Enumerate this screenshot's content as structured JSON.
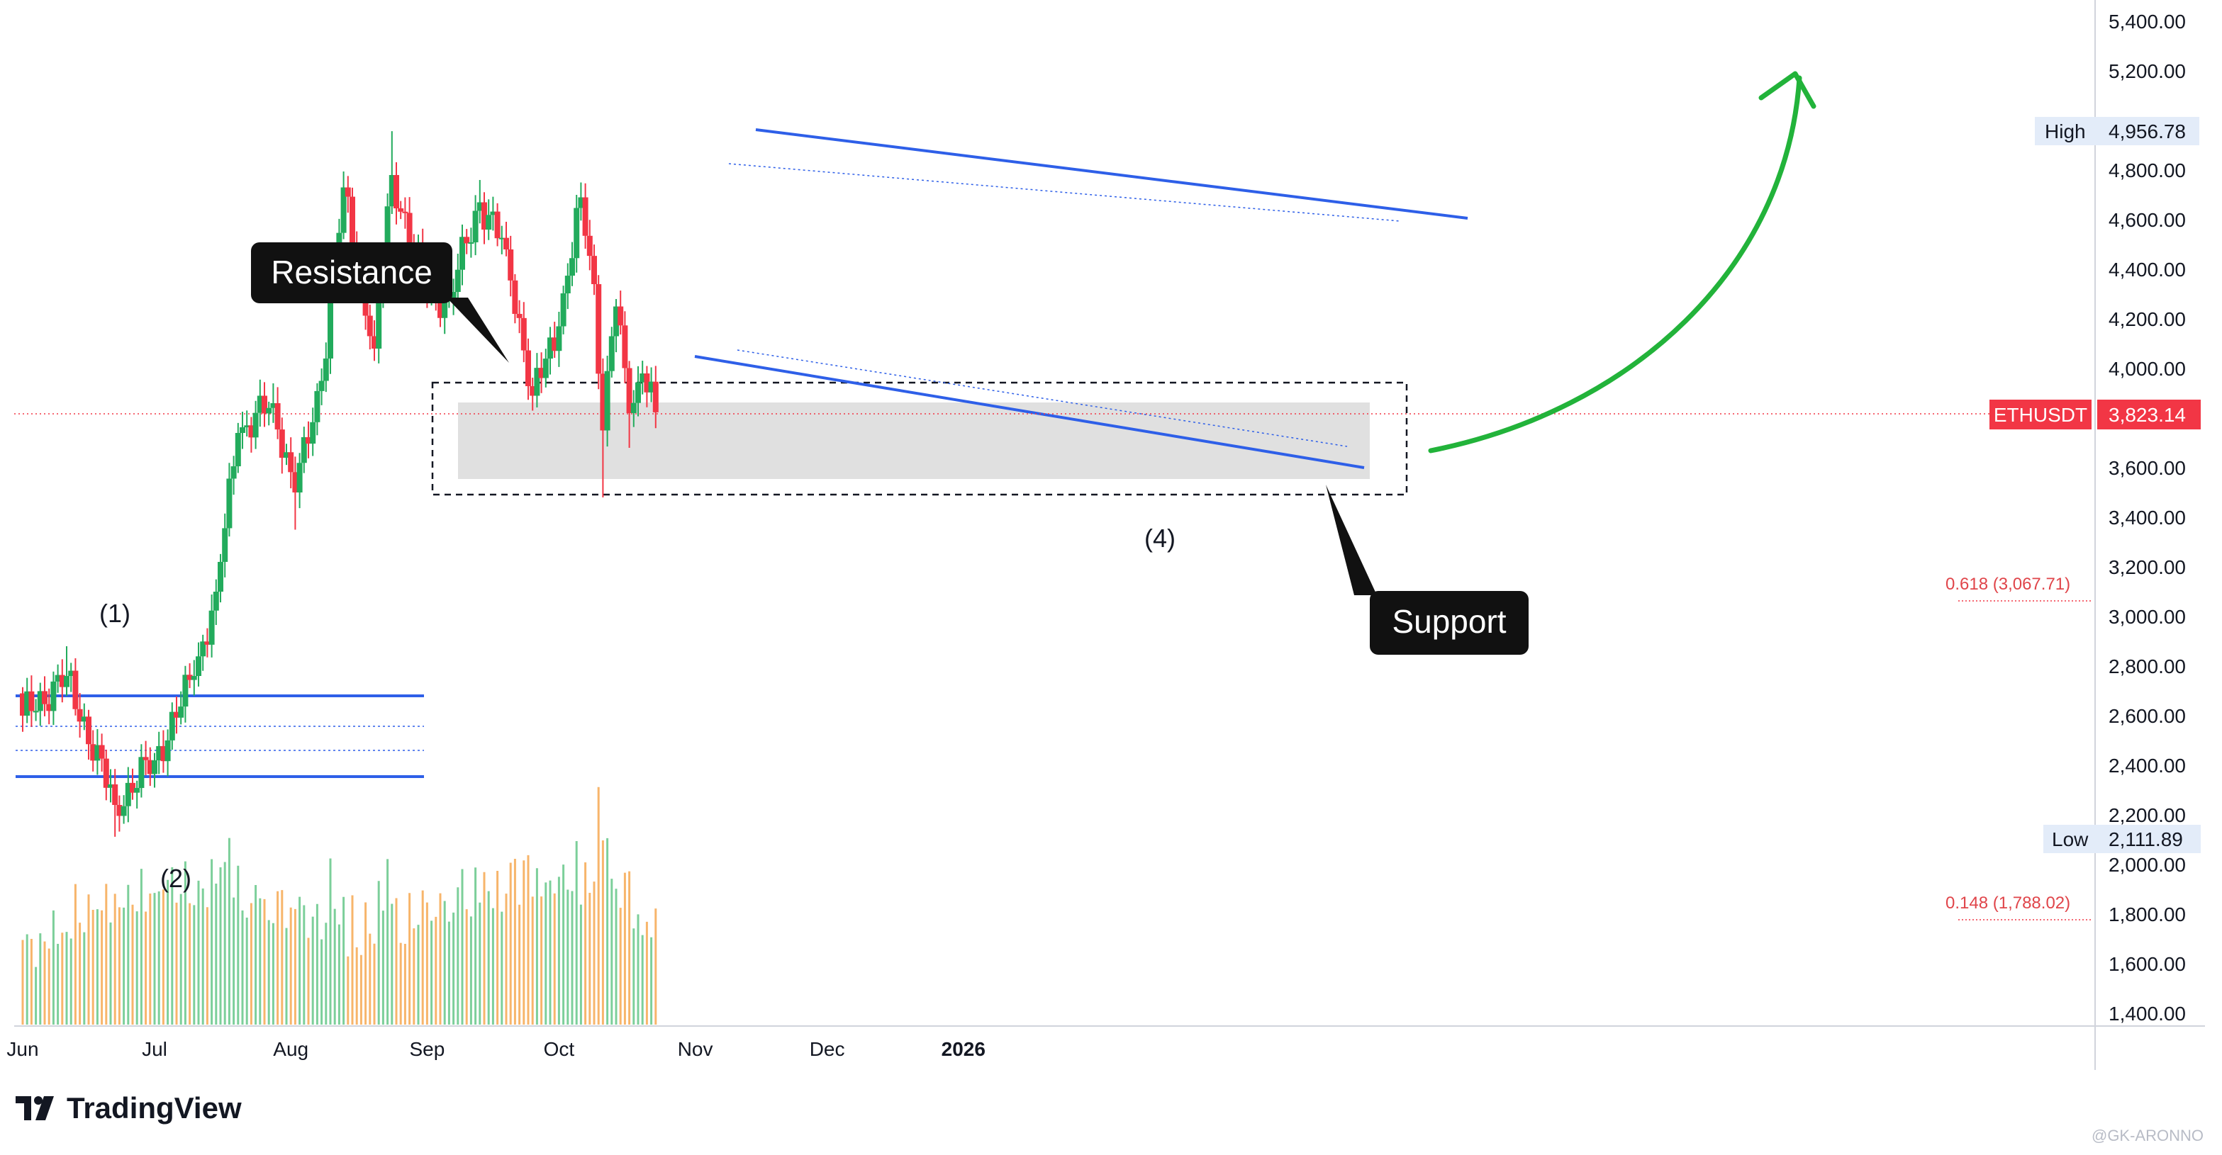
{
  "chart_data": {
    "type": "candlestick",
    "symbol": "ETHUSDT",
    "last_price": 3823.14,
    "last_price_label": "3,823.14",
    "y_axis": {
      "range": [
        1400,
        5400
      ],
      "tick_labels": [
        "5,400.00",
        "5,200.00",
        "4,800.00",
        "4,600.00",
        "4,400.00",
        "4,200.00",
        "4,000.00",
        "3,600.00",
        "3,400.00",
        "3,200.00",
        "3,000.00",
        "2,800.00",
        "2,600.00",
        "2,400.00",
        "2,200.00",
        "2,000.00",
        "1,800.00",
        "1,600.00",
        "1,400.00"
      ],
      "tick_values": [
        5400,
        5200,
        4800,
        4600,
        4400,
        4200,
        4000,
        3600,
        3400,
        3200,
        3000,
        2800,
        2600,
        2400,
        2200,
        2000,
        1800,
        1600,
        1400
      ]
    },
    "x_axis": {
      "labels": [
        "Jun",
        "Jul",
        "Aug",
        "Sep",
        "Oct",
        "Nov",
        "Dec",
        "2026"
      ],
      "label_days": [
        0,
        30,
        61,
        92,
        122,
        153,
        183,
        214
      ],
      "bold_labels": [
        "2026"
      ]
    },
    "high": {
      "label": "High",
      "value_label": "4,956.78",
      "value": 4956.78
    },
    "low": {
      "label": "Low",
      "value_label": "2,111.89",
      "value": 2111.89
    },
    "fib_levels": [
      {
        "label": "0.618 (3,067.71)",
        "value": 3067.71
      },
      {
        "label": "0.148 (1,788.02)",
        "value": 1788.02
      }
    ],
    "key_points": [
      {
        "date": "2025-06-01",
        "open": 2690,
        "close": 2600
      },
      {
        "date": "2025-06-11",
        "high": 2880,
        "close": 2760
      },
      {
        "date": "2025-06-22",
        "low": 2111.89,
        "close": 2240
      },
      {
        "date": "2025-07-01",
        "close": 2420
      },
      {
        "date": "2025-07-10",
        "close": 2760
      },
      {
        "date": "2025-07-15",
        "close": 3100
      },
      {
        "date": "2025-07-20",
        "close": 3740
      },
      {
        "date": "2025-07-28",
        "high": 3940,
        "close": 3860
      },
      {
        "date": "2025-08-02",
        "low": 3350,
        "close": 3500
      },
      {
        "date": "2025-08-08",
        "close": 3950
      },
      {
        "date": "2025-08-13",
        "close": 4730
      },
      {
        "date": "2025-08-20",
        "close": 4080
      },
      {
        "date": "2025-08-24",
        "high": 4956.78,
        "close": 4780
      },
      {
        "date": "2025-09-01",
        "close": 4300
      },
      {
        "date": "2025-09-06",
        "close": 4280
      },
      {
        "date": "2025-09-13",
        "high": 4760,
        "close": 4670
      },
      {
        "date": "2025-09-19",
        "close": 4480
      },
      {
        "date": "2025-09-25",
        "low": 3830,
        "close": 3890
      },
      {
        "date": "2025-10-01",
        "close": 4170
      },
      {
        "date": "2025-10-06",
        "high": 4750,
        "close": 4690
      },
      {
        "date": "2025-10-09",
        "close": 4340
      },
      {
        "date": "2025-10-11",
        "low": 3480,
        "close": 3750
      },
      {
        "date": "2025-10-13",
        "close": 4130
      },
      {
        "date": "2025-10-14",
        "high": 4280,
        "close": 4250
      },
      {
        "date": "2025-10-17",
        "low": 3680,
        "close": 3820
      },
      {
        "date": "2025-10-20",
        "close": 3980
      },
      {
        "date": "2025-10-23",
        "close": 3823.14
      }
    ],
    "legend": "none",
    "grid": false
  },
  "annotations": {
    "resistance": "Resistance",
    "support": "Support",
    "wave_1": "(1)",
    "wave_2": "(2)",
    "wave_4": "(4)"
  },
  "colors": {
    "up": "#22ab5c",
    "down": "#f23645",
    "volume_up": "#7ccf9a",
    "volume_down": "#f7b56b",
    "channel": "#2e5fe8",
    "arrow": "#22b33a",
    "price_tag": "#f23645"
  },
  "brand": {
    "name": "TradingView"
  },
  "watermark": "@GK-ARONNO"
}
